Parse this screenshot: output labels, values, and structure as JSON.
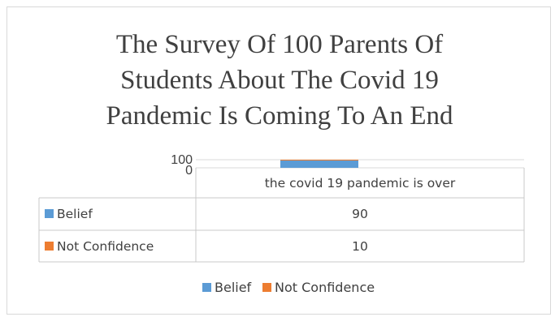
{
  "chart_data": {
    "type": "bar",
    "title_lines": [
      "The Survey Of 100 Parents Of",
      "Students About The Covid 19",
      "Pandemic Is Coming To An End"
    ],
    "categories": [
      "the covid 19 pandemic is over"
    ],
    "series": [
      {
        "name": "Belief",
        "values": [
          90
        ],
        "color": "#5b9bd5"
      },
      {
        "name": "Not Confidence",
        "values": [
          10
        ],
        "color": "#ed7d31"
      }
    ],
    "yticks": [
      "0",
      "100"
    ],
    "ylim": [
      0,
      100
    ],
    "grid": true,
    "data_table": true,
    "legend_position": "bottom"
  }
}
